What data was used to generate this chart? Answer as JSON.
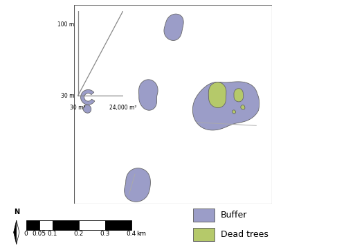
{
  "buffer_color": "#9b9dc8",
  "dead_tree_color": "#b5c96a",
  "background_color": "#ffffff",
  "edge_color": "#666666",
  "line_color": "#aaaaaa",
  "inset_xlabel1": "30 m²",
  "inset_xlabel2": "24,000 m²",
  "inset_ylabel1": "30 m",
  "inset_ylabel2": "100 m",
  "scale_label": "km",
  "scale_ticks": [
    "0",
    "0.05",
    "0.1",
    "0.2",
    "0.3",
    "0.4"
  ],
  "legend_labels": [
    "Buffer",
    "Dead trees"
  ],
  "legend_fontsize": 9,
  "scale_fontsize": 6.5
}
